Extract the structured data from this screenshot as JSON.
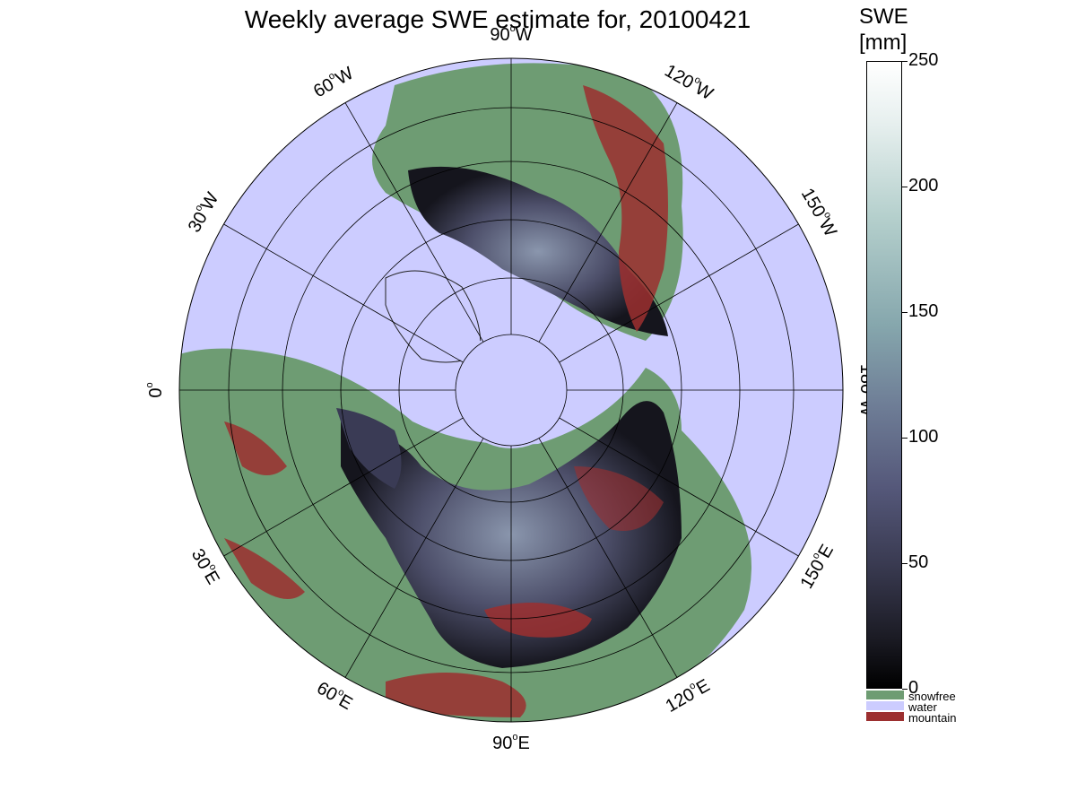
{
  "title": "Weekly average SWE estimate for, 20100421",
  "colorbar": {
    "title_line1": "SWE",
    "title_line2": "[mm]",
    "ticks": [
      "250",
      "200",
      "150",
      "100",
      "50",
      "0"
    ],
    "tick_values": [
      250,
      200,
      150,
      100,
      50,
      0
    ],
    "range": [
      0,
      250
    ]
  },
  "categories": [
    {
      "label": "snowfree",
      "color": "#6e9c73"
    },
    {
      "label": "water",
      "color": "#ccccff"
    },
    {
      "label": "mountain",
      "color": "#9c2f2f"
    }
  ],
  "longitude_labels": [
    {
      "text": "90",
      "hemi": "W"
    },
    {
      "text": "120",
      "hemi": "W"
    },
    {
      "text": "150",
      "hemi": "W"
    },
    {
      "text": "180",
      "hemi": "W"
    },
    {
      "text": "150",
      "hemi": "E"
    },
    {
      "text": "120",
      "hemi": "E"
    },
    {
      "text": "90",
      "hemi": "E"
    },
    {
      "text": "60",
      "hemi": "E"
    },
    {
      "text": "30",
      "hemi": "E"
    },
    {
      "text": "0",
      "hemi": ""
    },
    {
      "text": "30",
      "hemi": "W"
    },
    {
      "text": "60",
      "hemi": "W"
    }
  ],
  "map": {
    "projection": "north polar stereographic",
    "ocean_color": "#ccccff",
    "land_color": "#6e9c73",
    "mountain_color": "#9c2f2f"
  }
}
